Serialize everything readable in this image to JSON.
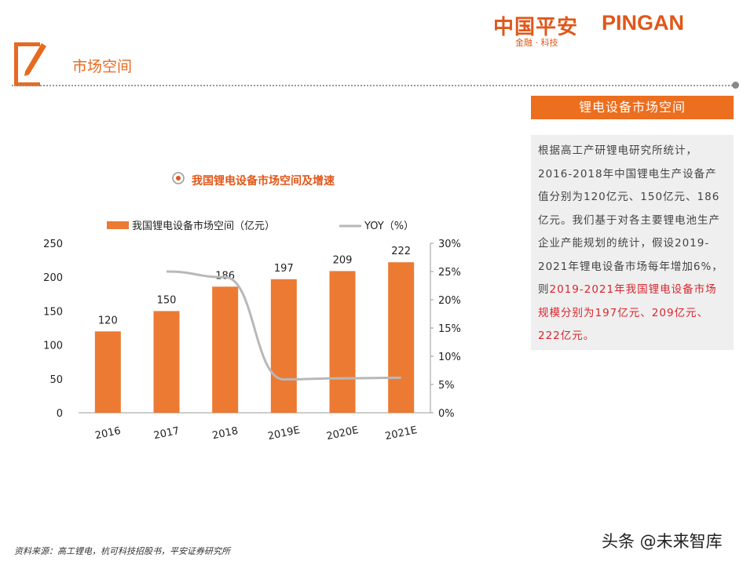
{
  "header": {
    "logo_cn": "中国平安",
    "logo_en": "PINGAN",
    "logo_sub": "金融 · 科技",
    "section_title": "市场空间"
  },
  "side": {
    "header": "锂电设备市场空间",
    "text_normal": "根据高工产研锂电研究所统计，2016-2018年中国锂电生产设备产值分别为120亿元、150亿元、186亿元。我们基于对各主要锂电池生产企业产能规划的统计，假设2019-2021年锂电设备市场每年增加6%，则",
    "text_highlight": "2019-2021年我国锂电设备市场规模分别为197亿元、209亿元、222亿元。"
  },
  "colors": {
    "accent": "#ec7a33",
    "line": "#b8b8b8",
    "highlight": "#d8262e"
  },
  "chart_data": {
    "type": "bar",
    "title": "我国锂电设备市场空间及增速",
    "categories": [
      "2016",
      "2017",
      "2018",
      "2019E",
      "2020E",
      "2021E"
    ],
    "series": [
      {
        "name": "我国锂电设备市场空间（亿元）",
        "type": "bar",
        "axis": "left",
        "values": [
          120,
          150,
          186,
          197,
          209,
          222
        ],
        "labels": [
          "120",
          "150",
          "186",
          "197",
          "209",
          "222"
        ]
      },
      {
        "name": "YOY（%）",
        "type": "line",
        "axis": "right",
        "values": [
          null,
          25,
          24,
          5.9,
          6.1,
          6.2
        ]
      }
    ],
    "y_left": {
      "range": [
        0,
        250
      ],
      "ticks": [
        "0",
        "50",
        "100",
        "150",
        "200",
        "250"
      ]
    },
    "y_right": {
      "range": [
        0,
        30
      ],
      "ticks": [
        "0%",
        "5%",
        "10%",
        "15%",
        "20%",
        "25%",
        "30%"
      ]
    },
    "legend": "top",
    "grid": false
  },
  "footer": {
    "source": "资料来源：高工锂电，杭可科技招股书，平安证券研究所",
    "watermark": "头条 @未来智库"
  }
}
